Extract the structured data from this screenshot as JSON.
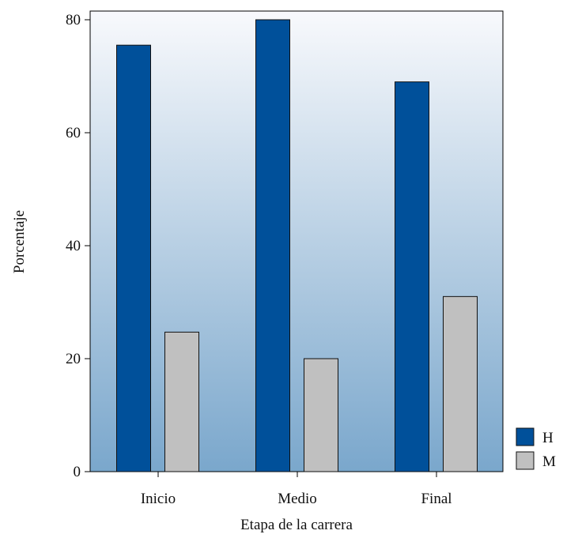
{
  "chart_data": {
    "type": "bar",
    "categories": [
      "Inicio",
      "Medio",
      "Final"
    ],
    "series": [
      {
        "name": "H",
        "values": [
          75.5,
          80.0,
          69.0
        ],
        "color": "#00509a"
      },
      {
        "name": "M",
        "values": [
          24.7,
          20.0,
          31.0
        ],
        "color": "#c0c0c0"
      }
    ],
    "xlabel": "Etapa de la carrera",
    "ylabel": "Porcentaje",
    "ylim": [
      0,
      80
    ],
    "yticks": [
      0,
      20,
      40,
      60,
      80
    ],
    "grid": false,
    "legend_position": "bottom-right",
    "background_gradient": [
      "#f8f9fc",
      "#7aa7cc"
    ]
  }
}
